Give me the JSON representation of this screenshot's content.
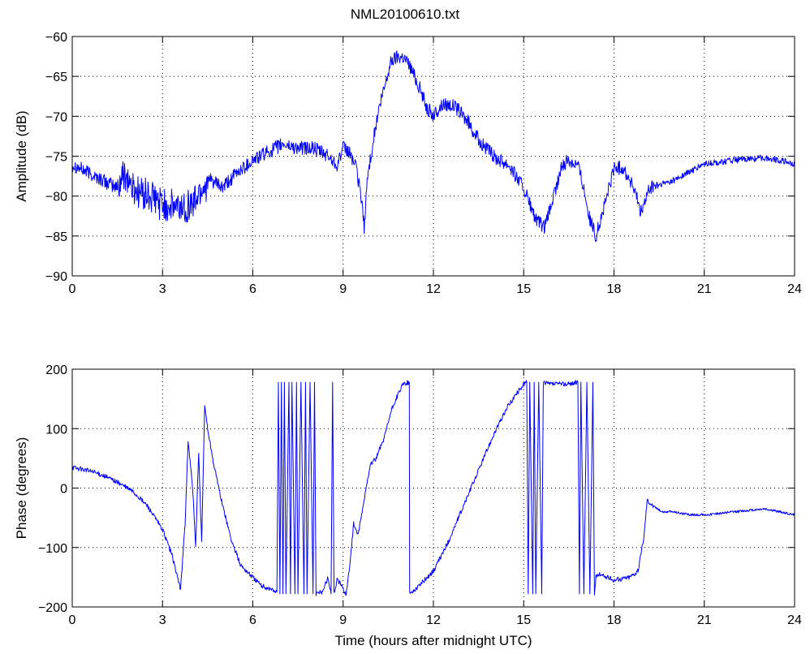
{
  "title": "NML20100610.txt",
  "chart_data": [
    {
      "type": "line",
      "title": "NML20100610.txt",
      "xlabel": "",
      "ylabel": "Amplitude (dB)",
      "xlim": [
        0,
        24
      ],
      "ylim": [
        -90,
        -60
      ],
      "xticks": [
        "0",
        "3",
        "6",
        "9",
        "12",
        "15",
        "18",
        "21",
        "24"
      ],
      "yticks": [
        "−90",
        "−85",
        "−80",
        "−75",
        "−70",
        "−65",
        "−60"
      ],
      "grid": true,
      "color": "#0000ff",
      "series": [
        {
          "x": [
            0,
            0.5,
            1.0,
            1.5,
            1.75,
            2.0,
            2.5,
            3.0,
            3.5,
            4.0,
            4.3,
            4.6,
            5.0,
            5.5,
            6.0,
            6.5,
            7.0,
            7.5,
            8.0,
            8.5,
            8.8,
            9.0,
            9.2,
            9.4,
            9.6,
            9.7,
            9.8,
            10.0,
            10.2,
            10.4,
            10.6,
            10.8,
            11.0,
            11.2,
            11.5,
            11.8,
            12.0,
            12.3,
            12.6,
            12.9,
            13.2,
            13.5,
            14.0,
            14.5,
            15.0,
            15.4,
            15.7,
            16.0,
            16.3,
            16.5,
            16.8,
            17.0,
            17.2,
            17.4,
            17.7,
            18.0,
            18.3,
            18.6,
            18.9,
            19.2,
            19.6,
            20.0,
            20.5,
            21.0,
            22.0,
            23.0,
            23.5,
            24.0
          ],
          "y": [
            -76,
            -77,
            -78,
            -79,
            -77,
            -79,
            -80,
            -81,
            -81.5,
            -81,
            -79,
            -78,
            -79,
            -77,
            -75.5,
            -74.5,
            -73.5,
            -74,
            -74,
            -75,
            -76,
            -74,
            -74.5,
            -76,
            -80,
            -84,
            -78,
            -73,
            -69,
            -66,
            -63,
            -62.5,
            -62.5,
            -63.5,
            -66,
            -69,
            -70,
            -68.5,
            -68.5,
            -69.5,
            -71,
            -73,
            -75,
            -76,
            -79,
            -83,
            -84,
            -80,
            -76,
            -75.5,
            -76,
            -79,
            -83,
            -85,
            -81,
            -76.5,
            -76.5,
            -78.5,
            -82,
            -79,
            -78.5,
            -78,
            -77,
            -76,
            -75.5,
            -75.2,
            -75.5,
            -76
          ]
        }
      ]
    },
    {
      "type": "line",
      "title": "",
      "xlabel": "Time (hours after midnight UTC)",
      "ylabel": "Phase (degrees)",
      "xlim": [
        0,
        24
      ],
      "ylim": [
        -200,
        200
      ],
      "xticks": [
        "0",
        "3",
        "6",
        "9",
        "12",
        "15",
        "18",
        "21",
        "24"
      ],
      "yticks": [
        "−200",
        "−100",
        "0",
        "100",
        "200"
      ],
      "grid": true,
      "color": "#0000ff",
      "series": [
        {
          "x": [
            0,
            0.5,
            1.0,
            1.5,
            2.0,
            2.5,
            3.0,
            3.3,
            3.5,
            3.6,
            3.75,
            3.85,
            4.0,
            4.1,
            4.2,
            4.3,
            4.4,
            4.5,
            4.7,
            5.0,
            5.3,
            5.6,
            6.0,
            6.3,
            6.6,
            6.8,
            6.85,
            6.9,
            6.95,
            7.0,
            7.05,
            7.1,
            7.2,
            7.25,
            7.3,
            7.4,
            7.45,
            7.5,
            7.6,
            7.7,
            7.75,
            7.8,
            7.9,
            8.0,
            8.05,
            8.1,
            8.3,
            8.5,
            8.6,
            8.65,
            8.7,
            8.75,
            8.8,
            8.9,
            9.0,
            9.1,
            9.2,
            9.35,
            9.5,
            9.7,
            9.9,
            10.1,
            10.4,
            10.6,
            10.8,
            11.0,
            11.2,
            11.21,
            11.3,
            11.6,
            12.0,
            12.5,
            13.0,
            13.5,
            14.0,
            14.5,
            15.0,
            15.1,
            15.15,
            15.2,
            15.3,
            15.35,
            15.4,
            15.5,
            15.6,
            15.65,
            15.7,
            15.8,
            16.0,
            16.5,
            16.8,
            16.85,
            16.9,
            17.0,
            17.1,
            17.2,
            17.3,
            17.35,
            17.4,
            17.5,
            18.0,
            18.5,
            18.8,
            19.0,
            19.1,
            19.3,
            19.6,
            20.0,
            20.5,
            21.0,
            22.0,
            23.0,
            24.0
          ],
          "y": [
            35,
            30,
            22,
            10,
            -5,
            -30,
            -70,
            -110,
            -150,
            -170,
            -60,
            80,
            0,
            -100,
            60,
            -90,
            140,
            100,
            40,
            -30,
            -90,
            -130,
            -150,
            -165,
            -170,
            -175,
            178,
            -178,
            178,
            -178,
            178,
            -178,
            178,
            -178,
            178,
            -178,
            178,
            -178,
            178,
            -178,
            178,
            -178,
            178,
            -178,
            178,
            -178,
            -175,
            -150,
            -178,
            178,
            -178,
            -165,
            -155,
            -160,
            -170,
            -178,
            -140,
            -60,
            -80,
            -20,
            40,
            50,
            90,
            130,
            155,
            175,
            178,
            -178,
            -175,
            -160,
            -140,
            -90,
            -30,
            30,
            90,
            140,
            175,
            178,
            -178,
            178,
            -178,
            178,
            -178,
            178,
            -178,
            178,
            178,
            175,
            175,
            175,
            178,
            -178,
            178,
            -178,
            178,
            -178,
            178,
            -178,
            -150,
            -145,
            -155,
            -150,
            -140,
            -80,
            -20,
            -30,
            -40,
            -40,
            -45,
            -45,
            -40,
            -35,
            -45
          ]
        }
      ]
    }
  ]
}
